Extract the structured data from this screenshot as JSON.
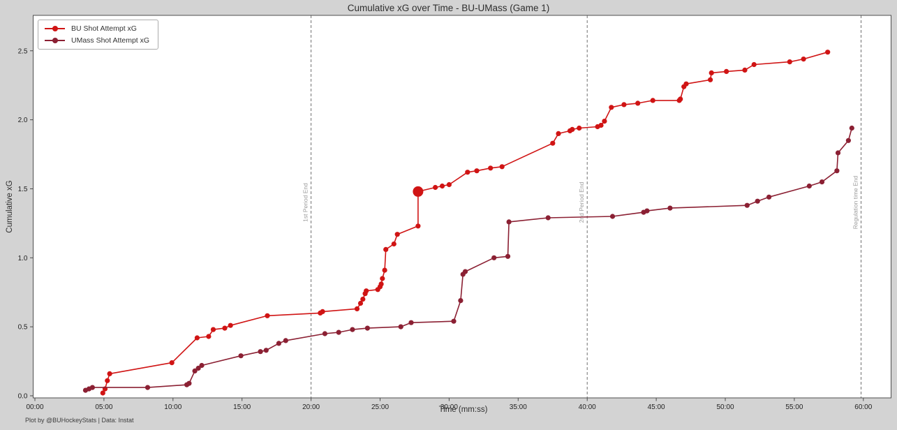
{
  "figure": {
    "footer": "Plot by @BUHockeyStats | Data: Instat",
    "background_color": "#d3d3d3",
    "plot_background_color": "#ffffff"
  },
  "chart_data": {
    "type": "line",
    "title": "Cumulative xG over Time - BU-UMass (Game 1)",
    "xlabel": "Time (mm:ss)",
    "ylabel": "Cumulative xG",
    "grid": false,
    "legend_position": "upper left",
    "xlim_minutes": [
      -0.2,
      62
    ],
    "ylim": [
      -0.02,
      2.75
    ],
    "x_ticks": [
      "00:00",
      "05:00",
      "10:00",
      "15:00",
      "20:00",
      "25:00",
      "30:00",
      "35:00",
      "40:00",
      "45:00",
      "50:00",
      "55:00",
      "60:00"
    ],
    "y_ticks": [
      "0.0",
      "0.5",
      "1.0",
      "1.5",
      "2.0",
      "2.5"
    ],
    "annotations": [
      {
        "time": "20:00",
        "label": "1st Period End"
      },
      {
        "time": "40:00",
        "label": "2nd Period End"
      },
      {
        "time": "59:50",
        "label": "Regulation time End"
      }
    ],
    "annotation_line_color": "#707070",
    "annotation_text_color": "#9a9a9a",
    "series": [
      {
        "name": "BU Shot Attempt xG",
        "color": "#d01414",
        "highlight_point": {
          "t": "27:45",
          "v": 1.48
        },
        "points": [
          [
            "04:55",
            0.02
          ],
          [
            "05:05",
            0.05
          ],
          [
            "05:15",
            0.11
          ],
          [
            "05:25",
            0.16
          ],
          [
            "09:55",
            0.24
          ],
          [
            "11:45",
            0.42
          ],
          [
            "12:35",
            0.43
          ],
          [
            "12:55",
            0.48
          ],
          [
            "13:45",
            0.49
          ],
          [
            "14:10",
            0.51
          ],
          [
            "16:50",
            0.58
          ],
          [
            "20:40",
            0.6
          ],
          [
            "20:50",
            0.61
          ],
          [
            "23:20",
            0.63
          ],
          [
            "23:35",
            0.67
          ],
          [
            "23:45",
            0.7
          ],
          [
            "23:55",
            0.74
          ],
          [
            "24:00",
            0.76
          ],
          [
            "24:50",
            0.77
          ],
          [
            "25:00",
            0.79
          ],
          [
            "25:05",
            0.81
          ],
          [
            "25:10",
            0.85
          ],
          [
            "25:20",
            0.91
          ],
          [
            "25:25",
            1.06
          ],
          [
            "26:00",
            1.1
          ],
          [
            "26:15",
            1.17
          ],
          [
            "27:45",
            1.23
          ],
          [
            "27:45",
            1.48
          ],
          [
            "29:00",
            1.51
          ],
          [
            "29:30",
            1.52
          ],
          [
            "30:00",
            1.53
          ],
          [
            "31:20",
            1.62
          ],
          [
            "32:00",
            1.63
          ],
          [
            "33:00",
            1.65
          ],
          [
            "33:50",
            1.66
          ],
          [
            "37:30",
            1.83
          ],
          [
            "37:55",
            1.9
          ],
          [
            "38:45",
            1.92
          ],
          [
            "38:55",
            1.93
          ],
          [
            "39:25",
            1.94
          ],
          [
            "40:45",
            1.95
          ],
          [
            "41:00",
            1.96
          ],
          [
            "41:15",
            1.99
          ],
          [
            "41:45",
            2.09
          ],
          [
            "42:40",
            2.11
          ],
          [
            "43:40",
            2.12
          ],
          [
            "44:45",
            2.14
          ],
          [
            "46:40",
            2.14
          ],
          [
            "46:45",
            2.15
          ],
          [
            "47:00",
            2.24
          ],
          [
            "47:10",
            2.26
          ],
          [
            "48:55",
            2.29
          ],
          [
            "49:00",
            2.34
          ],
          [
            "50:05",
            2.35
          ],
          [
            "51:25",
            2.36
          ],
          [
            "52:05",
            2.4
          ],
          [
            "54:40",
            2.42
          ],
          [
            "55:40",
            2.44
          ],
          [
            "57:25",
            2.49
          ]
        ]
      },
      {
        "name": "UMass Shot Attempt xG",
        "color": "#8b2033",
        "points": [
          [
            "03:40",
            0.04
          ],
          [
            "03:55",
            0.05
          ],
          [
            "04:10",
            0.06
          ],
          [
            "08:10",
            0.06
          ],
          [
            "11:00",
            0.08
          ],
          [
            "11:10",
            0.09
          ],
          [
            "11:35",
            0.18
          ],
          [
            "11:50",
            0.2
          ],
          [
            "12:05",
            0.22
          ],
          [
            "14:55",
            0.29
          ],
          [
            "16:20",
            0.32
          ],
          [
            "16:45",
            0.33
          ],
          [
            "17:40",
            0.38
          ],
          [
            "18:10",
            0.4
          ],
          [
            "21:00",
            0.45
          ],
          [
            "22:00",
            0.46
          ],
          [
            "23:00",
            0.48
          ],
          [
            "24:05",
            0.49
          ],
          [
            "26:30",
            0.5
          ],
          [
            "27:15",
            0.53
          ],
          [
            "30:20",
            0.54
          ],
          [
            "30:50",
            0.69
          ],
          [
            "31:00",
            0.88
          ],
          [
            "31:10",
            0.9
          ],
          [
            "33:15",
            1.0
          ],
          [
            "34:15",
            1.01
          ],
          [
            "34:20",
            1.26
          ],
          [
            "37:10",
            1.29
          ],
          [
            "41:50",
            1.3
          ],
          [
            "44:05",
            1.33
          ],
          [
            "44:20",
            1.34
          ],
          [
            "46:00",
            1.36
          ],
          [
            "51:35",
            1.38
          ],
          [
            "52:20",
            1.41
          ],
          [
            "53:10",
            1.44
          ],
          [
            "56:05",
            1.52
          ],
          [
            "57:00",
            1.55
          ],
          [
            "58:05",
            1.63
          ],
          [
            "58:10",
            1.76
          ],
          [
            "58:55",
            1.85
          ],
          [
            "59:10",
            1.94
          ]
        ]
      }
    ]
  }
}
